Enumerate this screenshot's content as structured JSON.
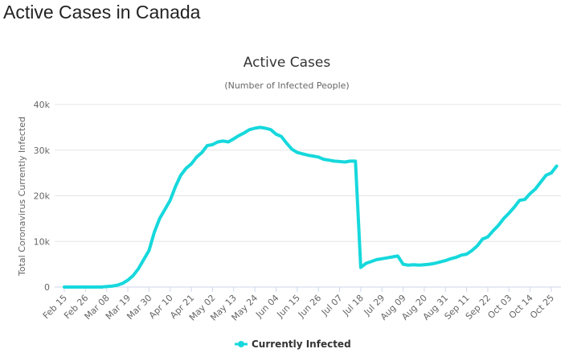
{
  "page_title": "Active Cases in Canada",
  "chart_data": {
    "type": "line",
    "title": "Active Cases",
    "subtitle": "(Number of Infected People)",
    "y_label": "Total Coronavirus Currently Infected",
    "categories": [
      "Feb 15",
      null,
      null,
      null,
      "Feb 26",
      null,
      null,
      null,
      "Mar 08",
      null,
      null,
      null,
      "Mar 19",
      null,
      null,
      null,
      "Mar 30",
      null,
      null,
      null,
      "Apr 10",
      null,
      null,
      null,
      "Apr 21",
      null,
      null,
      null,
      "May 02",
      null,
      null,
      null,
      "May 13",
      null,
      null,
      null,
      "May 24",
      null,
      null,
      null,
      "Jun 04",
      null,
      null,
      null,
      "Jun 15",
      null,
      null,
      null,
      "Jun 26",
      null,
      null,
      null,
      "Jul 07",
      null,
      null,
      null,
      "Jul 18",
      null,
      null,
      null,
      "Jul 29",
      null,
      null,
      null,
      "Aug 09",
      null,
      null,
      null,
      "Aug 20",
      null,
      null,
      null,
      "Aug 31",
      null,
      null,
      null,
      "Sep 11",
      null,
      null,
      null,
      "Sep 22",
      null,
      null,
      null,
      "Oct 03",
      null,
      null,
      null,
      "Oct 14",
      null,
      null,
      null,
      "Oct 25",
      null
    ],
    "series": [
      {
        "name": "Currently Infected",
        "color": "#16d8dc",
        "values": [
          0,
          0,
          0,
          0,
          0,
          0,
          0,
          0,
          100,
          200,
          400,
          800,
          1500,
          2500,
          4000,
          6000,
          8000,
          12000,
          15000,
          17000,
          19000,
          22000,
          24500,
          26000,
          27000,
          28500,
          29500,
          31000,
          31200,
          31800,
          32000,
          31800,
          32500,
          33200,
          33800,
          34500,
          34800,
          35000,
          34800,
          34500,
          33500,
          33000,
          31500,
          30200,
          29500,
          29200,
          28900,
          28700,
          28500,
          28000,
          27800,
          27600,
          27500,
          27400,
          27600,
          27600,
          4300,
          5200,
          5600,
          6000,
          6200,
          6400,
          6600,
          6800,
          5000,
          4800,
          4900,
          4800,
          4900,
          5000,
          5200,
          5500,
          5800,
          6200,
          6500,
          7000,
          7200,
          8000,
          9000,
          10500,
          11000,
          12300,
          13500,
          15000,
          16200,
          17500,
          19000,
          19200,
          20500,
          21500,
          23000,
          24500,
          25000,
          26500
        ]
      }
    ],
    "ylim": [
      0,
      40000
    ],
    "yticks": [
      0,
      {
        "value": 10000,
        "label": "10k"
      },
      {
        "value": 20000,
        "label": "20k"
      },
      {
        "value": 30000,
        "label": "30k"
      },
      {
        "value": 40000,
        "label": "40k"
      }
    ],
    "grid": true
  }
}
